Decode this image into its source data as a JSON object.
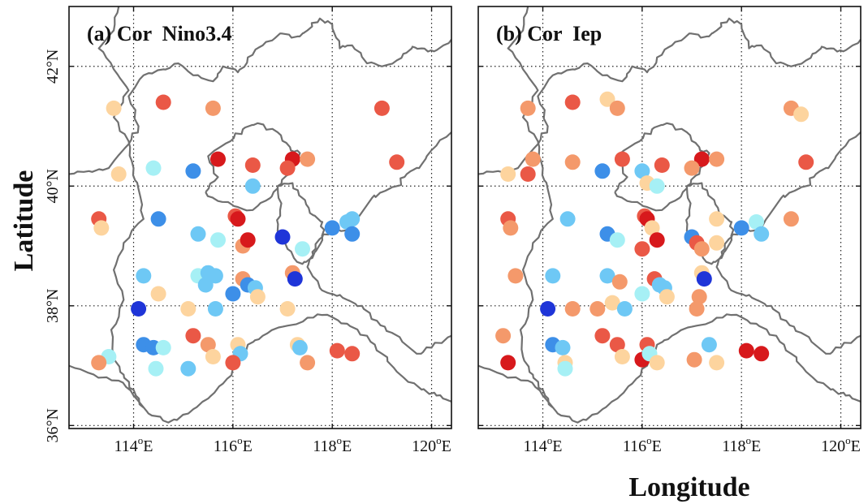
{
  "figure": {
    "ylabel": "Latitude",
    "xlabel": "Longitude"
  },
  "colors": {
    "dr": "#d7191c",
    "r": "#ea5846",
    "o": "#f4996b",
    "y": "#fdd49e",
    "lc": "#a6f0f5",
    "c": "#6ec8f5",
    "b": "#3d8fe8",
    "db": "#1f35d8",
    "boundary": "#707070",
    "grid": "#222222"
  },
  "chart_data": [
    {
      "type": "scatter",
      "title": "(a) Cor  Nino3.4",
      "xlim": [
        112.7,
        120.4
      ],
      "ylim": [
        35.95,
        43.0
      ],
      "xticks": [
        114,
        116,
        118,
        120
      ],
      "xtick_labels": [
        "114°E",
        "116°E",
        "118°E",
        "120°E"
      ],
      "yticks": [
        36,
        38,
        40,
        42
      ],
      "ytick_labels": [
        "36°N",
        "38°N",
        "40°N",
        "42°N"
      ],
      "grid": true,
      "points": [
        {
          "lon": 113.6,
          "lat": 41.3,
          "c": "y"
        },
        {
          "lon": 114.6,
          "lat": 41.4,
          "c": "r"
        },
        {
          "lon": 115.6,
          "lat": 41.3,
          "c": "o"
        },
        {
          "lon": 119.0,
          "lat": 41.3,
          "c": "r"
        },
        {
          "lon": 113.7,
          "lat": 40.2,
          "c": "y"
        },
        {
          "lon": 114.4,
          "lat": 40.3,
          "c": "lc"
        },
        {
          "lon": 115.2,
          "lat": 40.25,
          "c": "b"
        },
        {
          "lon": 115.7,
          "lat": 40.45,
          "c": "dr"
        },
        {
          "lon": 116.4,
          "lat": 40.35,
          "c": "r"
        },
        {
          "lon": 117.2,
          "lat": 40.45,
          "c": "dr"
        },
        {
          "lon": 117.5,
          "lat": 40.45,
          "c": "o"
        },
        {
          "lon": 117.1,
          "lat": 40.3,
          "c": "r"
        },
        {
          "lon": 119.3,
          "lat": 40.4,
          "c": "r"
        },
        {
          "lon": 116.4,
          "lat": 40.0,
          "c": "c"
        },
        {
          "lon": 113.3,
          "lat": 39.45,
          "c": "r"
        },
        {
          "lon": 113.35,
          "lat": 39.3,
          "c": "y"
        },
        {
          "lon": 114.5,
          "lat": 39.45,
          "c": "b"
        },
        {
          "lon": 116.05,
          "lat": 39.5,
          "c": "r"
        },
        {
          "lon": 116.1,
          "lat": 39.45,
          "c": "dr"
        },
        {
          "lon": 115.3,
          "lat": 39.2,
          "c": "c"
        },
        {
          "lon": 115.7,
          "lat": 39.1,
          "c": "lc"
        },
        {
          "lon": 116.2,
          "lat": 39.0,
          "c": "o"
        },
        {
          "lon": 116.3,
          "lat": 39.1,
          "c": "dr"
        },
        {
          "lon": 117.0,
          "lat": 39.15,
          "c": "db"
        },
        {
          "lon": 118.0,
          "lat": 39.3,
          "c": "b"
        },
        {
          "lon": 118.3,
          "lat": 39.4,
          "c": "c"
        },
        {
          "lon": 118.4,
          "lat": 39.45,
          "c": "c"
        },
        {
          "lon": 118.4,
          "lat": 39.2,
          "c": "b"
        },
        {
          "lon": 117.4,
          "lat": 38.95,
          "c": "lc"
        },
        {
          "lon": 114.2,
          "lat": 38.5,
          "c": "c"
        },
        {
          "lon": 115.3,
          "lat": 38.5,
          "c": "lc"
        },
        {
          "lon": 115.5,
          "lat": 38.55,
          "c": "c"
        },
        {
          "lon": 115.65,
          "lat": 38.5,
          "c": "c"
        },
        {
          "lon": 115.45,
          "lat": 38.35,
          "c": "c"
        },
        {
          "lon": 116.2,
          "lat": 38.45,
          "c": "o"
        },
        {
          "lon": 116.3,
          "lat": 38.35,
          "c": "b"
        },
        {
          "lon": 116.45,
          "lat": 38.3,
          "c": "c"
        },
        {
          "lon": 116.5,
          "lat": 38.15,
          "c": "y"
        },
        {
          "lon": 116.0,
          "lat": 38.2,
          "c": "b"
        },
        {
          "lon": 117.2,
          "lat": 38.55,
          "c": "o"
        },
        {
          "lon": 117.25,
          "lat": 38.45,
          "c": "db"
        },
        {
          "lon": 114.1,
          "lat": 37.95,
          "c": "db"
        },
        {
          "lon": 114.5,
          "lat": 38.2,
          "c": "y"
        },
        {
          "lon": 115.1,
          "lat": 37.95,
          "c": "y"
        },
        {
          "lon": 115.65,
          "lat": 37.95,
          "c": "c"
        },
        {
          "lon": 117.1,
          "lat": 37.95,
          "c": "y"
        },
        {
          "lon": 114.2,
          "lat": 37.35,
          "c": "b"
        },
        {
          "lon": 114.4,
          "lat": 37.3,
          "c": "b"
        },
        {
          "lon": 114.6,
          "lat": 37.3,
          "c": "lc"
        },
        {
          "lon": 115.2,
          "lat": 37.5,
          "c": "r"
        },
        {
          "lon": 115.5,
          "lat": 37.35,
          "c": "o"
        },
        {
          "lon": 116.1,
          "lat": 37.35,
          "c": "y"
        },
        {
          "lon": 116.15,
          "lat": 37.2,
          "c": "c"
        },
        {
          "lon": 115.6,
          "lat": 37.15,
          "c": "y"
        },
        {
          "lon": 116.0,
          "lat": 37.05,
          "c": "r"
        },
        {
          "lon": 113.5,
          "lat": 37.15,
          "c": "lc"
        },
        {
          "lon": 113.3,
          "lat": 37.05,
          "c": "o"
        },
        {
          "lon": 114.45,
          "lat": 36.95,
          "c": "lc"
        },
        {
          "lon": 115.1,
          "lat": 36.95,
          "c": "c"
        },
        {
          "lon": 117.3,
          "lat": 37.35,
          "c": "y"
        },
        {
          "lon": 117.35,
          "lat": 37.3,
          "c": "c"
        },
        {
          "lon": 117.5,
          "lat": 37.05,
          "c": "o"
        },
        {
          "lon": 118.1,
          "lat": 37.25,
          "c": "r"
        },
        {
          "lon": 118.4,
          "lat": 37.2,
          "c": "r"
        }
      ]
    },
    {
      "type": "scatter",
      "title": "(b) Cor  Iep",
      "xlim": [
        112.7,
        120.4
      ],
      "ylim": [
        35.95,
        43.0
      ],
      "xticks": [
        114,
        116,
        118,
        120
      ],
      "xtick_labels": [
        "114°E",
        "116°E",
        "118°E",
        "120°E"
      ],
      "yticks": [
        36,
        38,
        40,
        42
      ],
      "ytick_labels": [
        "36°N",
        "38°N",
        "40°N",
        "42°N"
      ],
      "grid": true,
      "points": [
        {
          "lon": 113.7,
          "lat": 41.3,
          "c": "o"
        },
        {
          "lon": 114.6,
          "lat": 41.4,
          "c": "r"
        },
        {
          "lon": 115.3,
          "lat": 41.45,
          "c": "y"
        },
        {
          "lon": 115.5,
          "lat": 41.3,
          "c": "o"
        },
        {
          "lon": 119.0,
          "lat": 41.3,
          "c": "o"
        },
        {
          "lon": 119.2,
          "lat": 41.2,
          "c": "y"
        },
        {
          "lon": 113.3,
          "lat": 40.2,
          "c": "y"
        },
        {
          "lon": 113.7,
          "lat": 40.2,
          "c": "r"
        },
        {
          "lon": 113.8,
          "lat": 40.45,
          "c": "o"
        },
        {
          "lon": 114.6,
          "lat": 40.4,
          "c": "o"
        },
        {
          "lon": 115.2,
          "lat": 40.25,
          "c": "b"
        },
        {
          "lon": 115.6,
          "lat": 40.45,
          "c": "r"
        },
        {
          "lon": 116.0,
          "lat": 40.25,
          "c": "c"
        },
        {
          "lon": 116.4,
          "lat": 40.35,
          "c": "r"
        },
        {
          "lon": 117.2,
          "lat": 40.45,
          "c": "dr"
        },
        {
          "lon": 117.5,
          "lat": 40.45,
          "c": "o"
        },
        {
          "lon": 117.0,
          "lat": 40.3,
          "c": "o"
        },
        {
          "lon": 119.3,
          "lat": 40.4,
          "c": "r"
        },
        {
          "lon": 116.1,
          "lat": 40.05,
          "c": "y"
        },
        {
          "lon": 116.3,
          "lat": 40.0,
          "c": "lc"
        },
        {
          "lon": 113.3,
          "lat": 39.45,
          "c": "r"
        },
        {
          "lon": 113.35,
          "lat": 39.3,
          "c": "o"
        },
        {
          "lon": 114.5,
          "lat": 39.45,
          "c": "c"
        },
        {
          "lon": 116.05,
          "lat": 39.5,
          "c": "r"
        },
        {
          "lon": 116.1,
          "lat": 39.45,
          "c": "dr"
        },
        {
          "lon": 116.2,
          "lat": 39.3,
          "c": "y"
        },
        {
          "lon": 115.3,
          "lat": 39.2,
          "c": "b"
        },
        {
          "lon": 115.5,
          "lat": 39.1,
          "c": "lc"
        },
        {
          "lon": 116.0,
          "lat": 38.95,
          "c": "r"
        },
        {
          "lon": 116.3,
          "lat": 39.1,
          "c": "dr"
        },
        {
          "lon": 117.0,
          "lat": 39.15,
          "c": "b"
        },
        {
          "lon": 117.1,
          "lat": 39.05,
          "c": "r"
        },
        {
          "lon": 117.2,
          "lat": 38.95,
          "c": "o"
        },
        {
          "lon": 117.5,
          "lat": 39.45,
          "c": "y"
        },
        {
          "lon": 117.5,
          "lat": 39.05,
          "c": "y"
        },
        {
          "lon": 118.0,
          "lat": 39.3,
          "c": "b"
        },
        {
          "lon": 118.3,
          "lat": 39.4,
          "c": "lc"
        },
        {
          "lon": 118.4,
          "lat": 39.2,
          "c": "c"
        },
        {
          "lon": 119.0,
          "lat": 39.45,
          "c": "o"
        },
        {
          "lon": 113.45,
          "lat": 38.5,
          "c": "o"
        },
        {
          "lon": 114.2,
          "lat": 38.5,
          "c": "c"
        },
        {
          "lon": 115.3,
          "lat": 38.5,
          "c": "c"
        },
        {
          "lon": 115.55,
          "lat": 38.4,
          "c": "o"
        },
        {
          "lon": 116.25,
          "lat": 38.45,
          "c": "r"
        },
        {
          "lon": 116.35,
          "lat": 38.35,
          "c": "c"
        },
        {
          "lon": 116.45,
          "lat": 38.3,
          "c": "c"
        },
        {
          "lon": 116.5,
          "lat": 38.15,
          "c": "y"
        },
        {
          "lon": 116.0,
          "lat": 38.2,
          "c": "lc"
        },
        {
          "lon": 117.2,
          "lat": 38.55,
          "c": "y"
        },
        {
          "lon": 117.25,
          "lat": 38.45,
          "c": "db"
        },
        {
          "lon": 117.15,
          "lat": 38.15,
          "c": "o"
        },
        {
          "lon": 114.1,
          "lat": 37.95,
          "c": "db"
        },
        {
          "lon": 114.6,
          "lat": 37.95,
          "c": "o"
        },
        {
          "lon": 115.1,
          "lat": 37.95,
          "c": "o"
        },
        {
          "lon": 115.4,
          "lat": 38.05,
          "c": "y"
        },
        {
          "lon": 115.65,
          "lat": 37.95,
          "c": "c"
        },
        {
          "lon": 117.1,
          "lat": 37.95,
          "c": "o"
        },
        {
          "lon": 113.2,
          "lat": 37.5,
          "c": "o"
        },
        {
          "lon": 113.3,
          "lat": 37.05,
          "c": "dr"
        },
        {
          "lon": 114.2,
          "lat": 37.35,
          "c": "b"
        },
        {
          "lon": 114.4,
          "lat": 37.3,
          "c": "c"
        },
        {
          "lon": 114.45,
          "lat": 37.05,
          "c": "y"
        },
        {
          "lon": 114.45,
          "lat": 36.95,
          "c": "lc"
        },
        {
          "lon": 115.2,
          "lat": 37.5,
          "c": "r"
        },
        {
          "lon": 115.5,
          "lat": 37.35,
          "c": "r"
        },
        {
          "lon": 115.6,
          "lat": 37.15,
          "c": "y"
        },
        {
          "lon": 116.0,
          "lat": 37.1,
          "c": "dr"
        },
        {
          "lon": 116.1,
          "lat": 37.35,
          "c": "r"
        },
        {
          "lon": 116.15,
          "lat": 37.2,
          "c": "lc"
        },
        {
          "lon": 116.3,
          "lat": 37.05,
          "c": "y"
        },
        {
          "lon": 117.05,
          "lat": 37.1,
          "c": "o"
        },
        {
          "lon": 117.35,
          "lat": 37.35,
          "c": "c"
        },
        {
          "lon": 117.5,
          "lat": 37.05,
          "c": "y"
        },
        {
          "lon": 118.1,
          "lat": 37.25,
          "c": "dr"
        },
        {
          "lon": 118.4,
          "lat": 37.2,
          "c": "dr"
        }
      ]
    }
  ]
}
